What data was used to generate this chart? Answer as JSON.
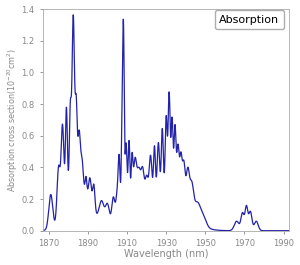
{
  "title": "Absorption",
  "xlabel": "Wavelength (nm)",
  "ylabel_text": "Absorption cross section($10^{-20}$cm$^2$)",
  "xmin": 1867,
  "xmax": 1993,
  "ymin": 0.0,
  "ymax": 1.4,
  "xticks": [
    1870,
    1890,
    1910,
    1930,
    1950,
    1970,
    1990
  ],
  "yticks": [
    0.0,
    0.2,
    0.4,
    0.6,
    0.8,
    1.0,
    1.2,
    1.4
  ],
  "line_color": "#2222aa",
  "line_width": 0.9,
  "background_color": "#ffffff",
  "legend_label": "Absorption",
  "tick_color": "#888888",
  "spine_color": "#aaaaaa"
}
